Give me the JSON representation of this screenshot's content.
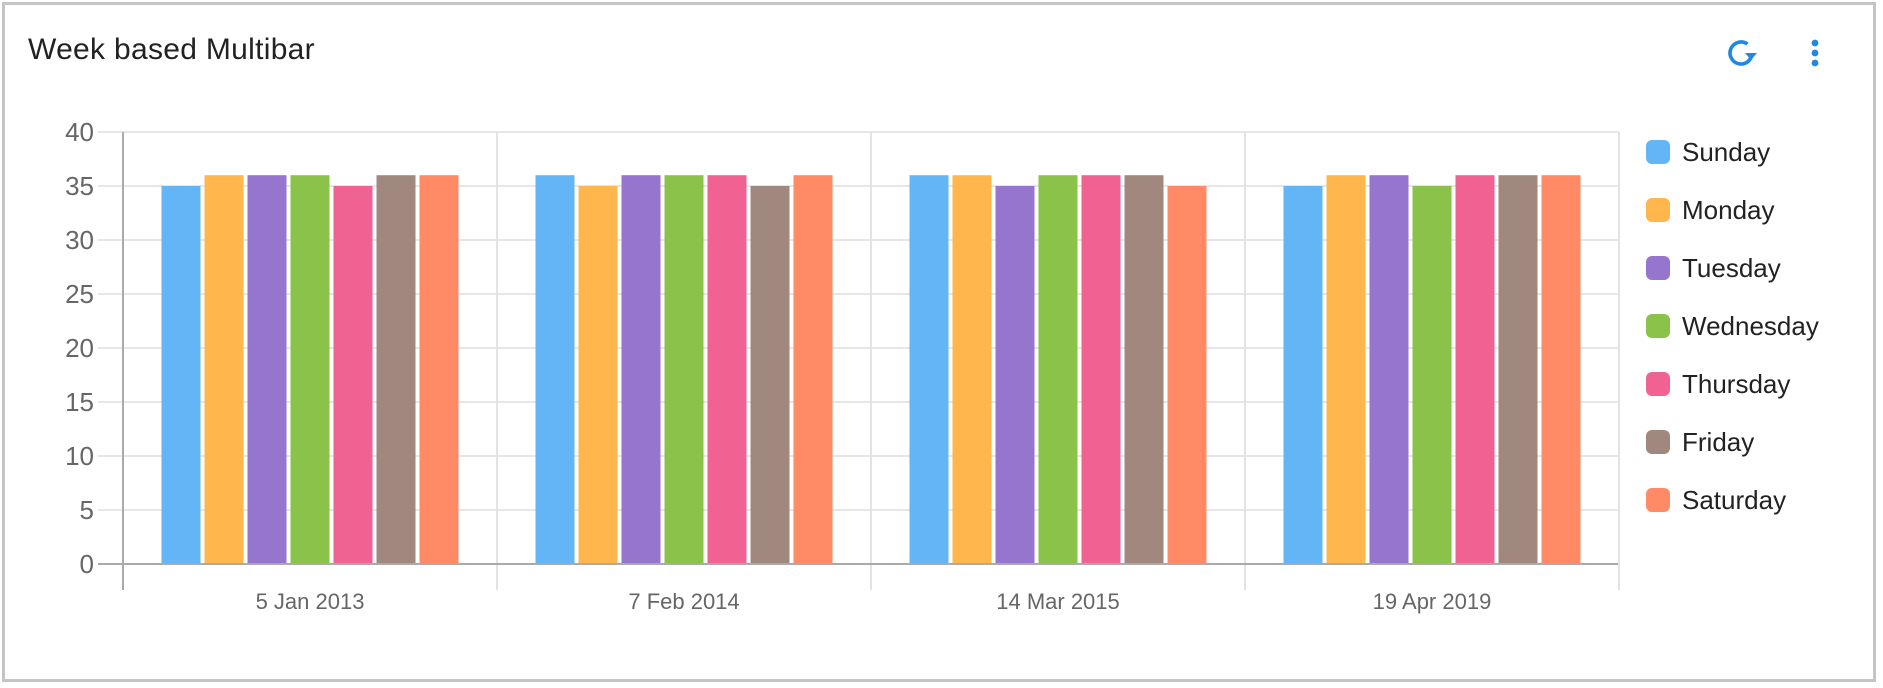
{
  "header": {
    "title": "Week based Multibar",
    "icons": {
      "refresh": "refresh-icon",
      "menu": "more-vertical-icon"
    },
    "icon_color": "#1e88e5"
  },
  "chart_data": {
    "type": "bar",
    "title": "Week based Multibar",
    "xlabel": "",
    "ylabel": "",
    "ylim": [
      0,
      40
    ],
    "yticks": [
      0,
      5,
      10,
      15,
      20,
      25,
      30,
      35,
      40
    ],
    "grid": true,
    "legend_position": "right",
    "categories": [
      "5 Jan 2013",
      "7 Feb 2014",
      "14 Mar 2015",
      "19 Apr 2019"
    ],
    "series": [
      {
        "name": "Sunday",
        "color": "#64b5f6",
        "values": [
          35,
          36,
          36,
          35
        ]
      },
      {
        "name": "Monday",
        "color": "#ffb74d",
        "values": [
          36,
          35,
          36,
          36
        ]
      },
      {
        "name": "Tuesday",
        "color": "#9575cd",
        "values": [
          36,
          36,
          35,
          36
        ]
      },
      {
        "name": "Wednesday",
        "color": "#8bc34a",
        "values": [
          36,
          36,
          36,
          35
        ]
      },
      {
        "name": "Thursday",
        "color": "#f06292",
        "values": [
          35,
          36,
          36,
          36
        ]
      },
      {
        "name": "Friday",
        "color": "#a1887f",
        "values": [
          36,
          35,
          36,
          36
        ]
      },
      {
        "name": "Saturday",
        "color": "#ff8a65",
        "values": [
          36,
          36,
          35,
          36
        ]
      }
    ]
  }
}
